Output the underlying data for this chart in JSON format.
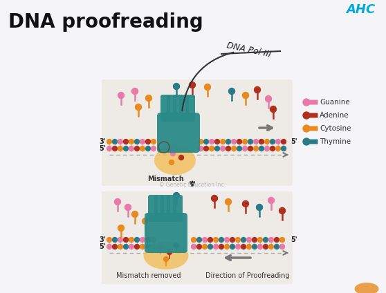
{
  "title": "DNA proofreading",
  "title_fontsize": 20,
  "title_color": "#111111",
  "bg_color": "#f5f5f7",
  "logo_text": "AHC",
  "logo_color": "#00aadd",
  "annotation_text": "DNA Pol III",
  "legend_items": [
    {
      "label": "Guanine",
      "color": "#e87aaa"
    },
    {
      "label": "Adenine",
      "color": "#b03020"
    },
    {
      "label": "Cytosine",
      "color": "#e88a20"
    },
    {
      "label": "Thymine",
      "color": "#2a7a88"
    }
  ],
  "label_mismatch": "Mismatch",
  "label_mismatch_removed": "Mismatch removed",
  "label_direction": "Direction of Proofreading",
  "watermark": "© Genetic Education Inc.",
  "diagram_bg_color": "#e8e2da",
  "polymerase_color": "#2a8a88",
  "finger_color": "#2a8a88",
  "mismatch_bubble_color": "#f5c060",
  "mismatch_removed_bubble_color": "#f0c060",
  "arrow_color": "#777777",
  "dna_colors_top": [
    "#e88a20",
    "#2a7a88",
    "#e87aaa",
    "#b03020",
    "#e88a20",
    "#2a7a88",
    "#e87aaa",
    "#b03020"
  ],
  "dna_colors_bot": [
    "#e87aaa",
    "#b03020",
    "#e88a20",
    "#2a7a88",
    "#e87aaa",
    "#b03020",
    "#e88a20",
    "#2a7a88"
  ],
  "nuc_top": [
    [
      175,
      138,
      "#e87aaa"
    ],
    [
      195,
      132,
      "#e87aaa"
    ],
    [
      215,
      142,
      "#e88a20"
    ],
    [
      200,
      155,
      "#e88a20"
    ],
    [
      255,
      125,
      "#2a7a88"
    ],
    [
      278,
      123,
      "#b03020"
    ],
    [
      300,
      126,
      "#e88a20"
    ],
    [
      335,
      132,
      "#2a7a88"
    ],
    [
      355,
      138,
      "#e88a20"
    ],
    [
      372,
      130,
      "#b03020"
    ],
    [
      388,
      143,
      "#e87aaa"
    ],
    [
      395,
      158,
      "#b03020"
    ]
  ],
  "nuc_bot": [
    [
      170,
      292,
      "#e87aaa"
    ],
    [
      185,
      300,
      "#e87aaa"
    ],
    [
      195,
      310,
      "#e88a20"
    ],
    [
      210,
      320,
      "#e88a20"
    ],
    [
      175,
      330,
      "#e88a20"
    ],
    [
      255,
      283,
      "#2a7a88"
    ],
    [
      310,
      287,
      "#b03020"
    ],
    [
      330,
      292,
      "#e88a20"
    ],
    [
      355,
      295,
      "#b03020"
    ],
    [
      375,
      300,
      "#2a7a88"
    ],
    [
      392,
      290,
      "#e87aaa"
    ],
    [
      408,
      305,
      "#b03020"
    ]
  ]
}
